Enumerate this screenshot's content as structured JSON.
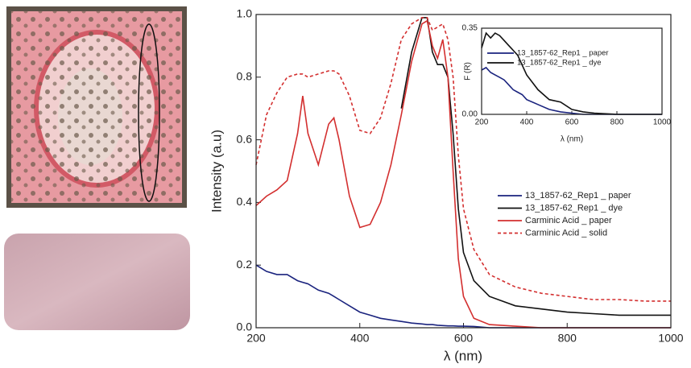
{
  "chart_data": [
    {
      "type": "line",
      "xlabel": "λ (nm)",
      "ylabel": "Intensity (a.u)",
      "x": [
        200,
        220,
        240,
        260,
        280,
        290,
        300,
        320,
        340,
        350,
        360,
        380,
        400,
        420,
        440,
        460,
        480,
        500,
        520,
        530,
        540,
        550,
        560,
        570,
        580,
        590,
        600,
        620,
        650,
        700,
        750,
        800,
        850,
        900,
        950,
        1000
      ],
      "series": [
        {
          "name": "13_1857-62_Rep1  _ paper",
          "color": "#1a237e",
          "values": [
            0.2,
            0.18,
            0.17,
            0.17,
            0.15,
            0.145,
            0.14,
            0.12,
            0.11,
            0.1,
            0.09,
            0.07,
            0.05,
            0.04,
            0.03,
            0.025,
            0.02,
            0.015,
            0.012,
            0.01,
            0.01,
            0.008,
            0.007,
            0.006,
            0.006,
            0.005,
            0.005,
            0.004,
            0,
            0,
            0,
            0,
            0,
            0,
            0,
            0
          ]
        },
        {
          "name": "13_1857-62_Rep1  _ dye",
          "color": "#111111",
          "values": [
            null,
            null,
            null,
            null,
            null,
            null,
            null,
            null,
            null,
            null,
            null,
            null,
            null,
            null,
            null,
            null,
            0.7,
            0.88,
            0.99,
            0.99,
            0.88,
            0.84,
            0.84,
            0.8,
            0.62,
            0.38,
            0.24,
            0.15,
            0.1,
            0.07,
            0.06,
            0.05,
            0.045,
            0.04,
            0.04,
            0.04
          ]
        },
        {
          "name": "Carminic Acid _ paper",
          "color": "#d32f2f",
          "values": [
            0.39,
            0.42,
            0.44,
            0.47,
            0.62,
            0.74,
            0.62,
            0.52,
            0.65,
            0.67,
            0.6,
            0.42,
            0.32,
            0.33,
            0.4,
            0.52,
            0.68,
            0.85,
            0.97,
            0.98,
            0.9,
            0.86,
            0.92,
            0.8,
            0.5,
            0.22,
            0.1,
            0.03,
            0.01,
            0.005,
            0,
            0,
            0,
            0,
            0,
            0
          ]
        },
        {
          "name": "Carminic Acid _ solid",
          "color": "#d32f2f",
          "dashed": true,
          "values": [
            0.52,
            0.68,
            0.75,
            0.8,
            0.81,
            0.81,
            0.8,
            0.81,
            0.82,
            0.82,
            0.81,
            0.74,
            0.63,
            0.62,
            0.67,
            0.78,
            0.92,
            0.97,
            0.99,
            0.99,
            0.95,
            0.96,
            0.97,
            0.92,
            0.8,
            0.55,
            0.38,
            0.25,
            0.17,
            0.13,
            0.11,
            0.1,
            0.09,
            0.09,
            0.085,
            0.085
          ]
        }
      ],
      "xlim": [
        200,
        1000
      ],
      "xticks": [
        200,
        400,
        600,
        800,
        1000
      ],
      "ylim": [
        0,
        1
      ],
      "yticks": [
        {
          "value": 0,
          "label": "0.0"
        },
        {
          "value": 0.2,
          "label": "0.2"
        },
        {
          "value": 0.4,
          "label": "0.4"
        },
        {
          "value": 0.6,
          "label": "0.6"
        },
        {
          "value": 0.8,
          "label": "0.8"
        },
        {
          "value": 1,
          "label": "1.0"
        }
      ]
    },
    {
      "type": "line",
      "xlabel": "λ (nm)",
      "ylabel": "F (R)",
      "x": [
        200,
        220,
        240,
        260,
        280,
        300,
        320,
        340,
        360,
        380,
        400,
        450,
        500,
        550,
        600,
        650,
        700,
        800,
        900,
        1000
      ],
      "series": [
        {
          "name": "13_1857-62_Rep1  _ paper",
          "color": "#1a237e",
          "values": [
            0.18,
            0.19,
            0.17,
            0.16,
            0.15,
            0.14,
            0.12,
            0.1,
            0.09,
            0.08,
            0.06,
            0.04,
            0.02,
            0.01,
            0.005,
            0,
            0,
            0,
            0,
            0
          ]
        },
        {
          "name": "13_1857-62_Rep1  _ dye",
          "color": "#111111",
          "values": [
            0.27,
            0.33,
            0.31,
            0.33,
            0.32,
            0.3,
            0.28,
            0.26,
            0.24,
            0.2,
            0.16,
            0.1,
            0.06,
            0.05,
            0.02,
            0.01,
            0.005,
            0,
            0,
            0
          ]
        }
      ],
      "xlim": [
        200,
        1000
      ],
      "xticks": [
        200,
        400,
        600,
        800,
        1000
      ],
      "ylim": [
        0,
        0.35
      ],
      "yticks": [
        {
          "value": 0,
          "label": "0.00"
        },
        {
          "value": 0.35,
          "label": "0.35"
        }
      ]
    }
  ]
}
